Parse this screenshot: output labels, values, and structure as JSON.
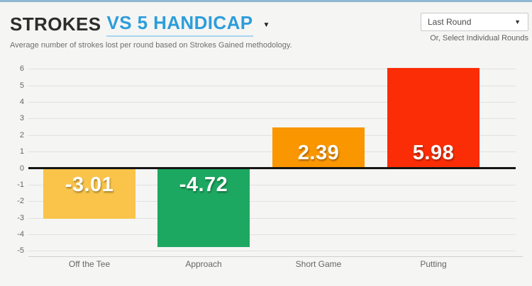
{
  "page": {
    "accent_color": "#8fb8d2",
    "background_color": "#f5f5f4"
  },
  "header": {
    "title_primary": "STROKES",
    "title_secondary": "VS 5 HANDICAP",
    "subtitle": "Average number of strokes lost per round based on Strokes Gained methodology.",
    "caret_icon": "▼"
  },
  "controls": {
    "round_select_value": "Last Round",
    "round_select_caret_icon": "▼",
    "individual_rounds_label": "Or, Select Individual Rounds"
  },
  "chart_data": {
    "type": "bar",
    "title": "Strokes vs 5 Handicap",
    "categories": [
      "Off the Tee",
      "Approach",
      "Short Game",
      "Putting"
    ],
    "values": [
      -3.01,
      -4.72,
      2.39,
      5.98
    ],
    "value_labels": [
      "-3.01",
      "-4.72",
      "2.39",
      "5.98"
    ],
    "bar_colors": [
      "#f9c449",
      "#1ca860",
      "#fa9600",
      "#fa2d06"
    ],
    "ylim": [
      -5,
      6
    ],
    "ytick_step": 1,
    "yticks": [
      6,
      5,
      4,
      3,
      2,
      1,
      0,
      -1,
      -2,
      -3,
      -4,
      -5
    ],
    "grid": true,
    "gridline_color": "#e1e1e1",
    "zero_line_color": "#151515",
    "legend": "none",
    "xlabel": "",
    "ylabel": ""
  }
}
